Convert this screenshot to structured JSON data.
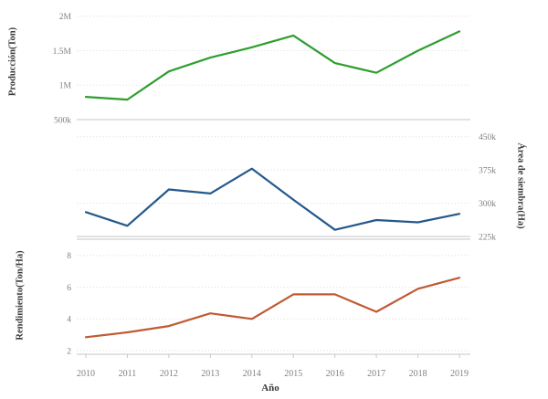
{
  "chart_data": {
    "type": "line",
    "xlabel": "Año",
    "categories": [
      "2010",
      "2011",
      "2012",
      "2013",
      "2014",
      "2015",
      "2016",
      "2017",
      "2018",
      "2019"
    ],
    "grid": true,
    "legend": "none",
    "panels": [
      {
        "name": "produccion",
        "ylabel": "Producción(Ton)",
        "axis_side": "left",
        "color": "#2e9e2e",
        "values": [
          830000,
          790000,
          1200000,
          1400000,
          1550000,
          1720000,
          1320000,
          1180000,
          1500000,
          1780000
        ],
        "yticks": [
          {
            "label": "500k",
            "value": 500000
          },
          {
            "label": "1M",
            "value": 1000000
          },
          {
            "label": "1.5M",
            "value": 1500000
          },
          {
            "label": "2M",
            "value": 2000000
          }
        ],
        "ylim": [
          500000,
          2130000
        ]
      },
      {
        "name": "area-siembra",
        "ylabel": "Área de siembra(Ha)",
        "axis_side": "right",
        "color": "#25598c",
        "values": [
          280000,
          249000,
          331000,
          322000,
          378000,
          308000,
          240000,
          262000,
          257000,
          276000
        ],
        "yticks": [
          {
            "label": "225k",
            "value": 225000
          },
          {
            "label": "300k",
            "value": 300000
          },
          {
            "label": "375k",
            "value": 375000
          },
          {
            "label": "450k",
            "value": 450000
          }
        ],
        "ylim": [
          225000,
          470000
        ]
      },
      {
        "name": "rendimiento",
        "ylabel": "Rendimiento(Ton/Ha)",
        "axis_side": "left",
        "color": "#c05a32",
        "values": [
          2.85,
          3.15,
          3.55,
          4.35,
          4.0,
          5.55,
          5.55,
          4.45,
          5.9,
          6.6
        ],
        "yticks": [
          {
            "label": "2",
            "value": 2
          },
          {
            "label": "4",
            "value": 4
          },
          {
            "label": "6",
            "value": 6
          },
          {
            "label": "8",
            "value": 8
          }
        ],
        "ylim": [
          1.77,
          9.03
        ]
      }
    ],
    "colors": {
      "grid": "#dadada",
      "axis": "#c6c6c6",
      "tick_text": "#7f7f7f",
      "title_text": "#3a3a3a",
      "background": "#ffffff"
    }
  }
}
